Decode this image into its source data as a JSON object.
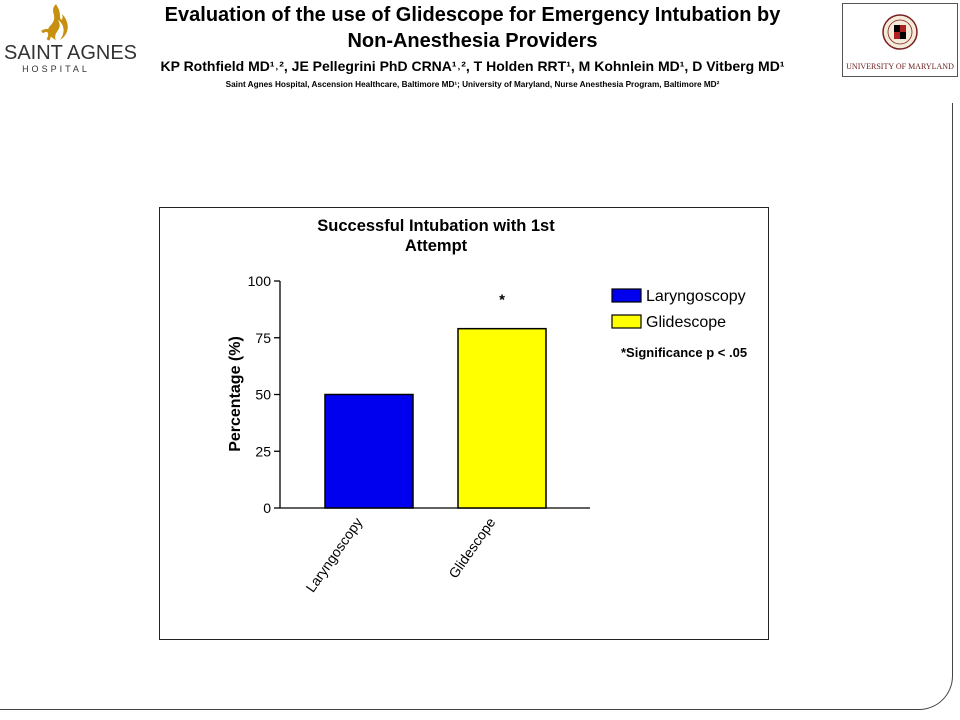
{
  "header": {
    "title_line1": "Evaluation of the use of Glidescope for Emergency Intubation by",
    "title_line2": "Non-Anesthesia Providers",
    "authors": "KP Rothfield MD¹˒², JE Pellegrini PhD CRNA¹˒², T Holden RRT¹, M Kohnlein MD¹, D Vitberg MD¹",
    "affiliations": "Saint Agnes Hospital, Ascension Healthcare, Baltimore MD¹; University of Maryland, Nurse Anesthesia Program, Baltimore MD²"
  },
  "logos": {
    "left_name": "SAINT AGNES",
    "left_sub": "HOSPITAL",
    "right_name": "UNIVERSITY OF MARYLAND",
    "left_icon": "flame-icon",
    "right_icon": "university-seal-icon"
  },
  "chart_data": {
    "type": "bar",
    "title": "Successful Intubation with 1st Attempt",
    "title_lines": [
      "Successful Intubation with 1st",
      "Attempt"
    ],
    "ylabel": "Percentage (%)",
    "xlabel": "",
    "categories": [
      "Laryngoscopy",
      "Glidescope"
    ],
    "values": [
      50,
      79
    ],
    "colors": [
      "#0000ee",
      "#ffff00"
    ],
    "ylim": [
      0,
      100
    ],
    "yticks": [
      0,
      25,
      50,
      75,
      100
    ],
    "grid": false,
    "legend_position": "right",
    "legend": [
      {
        "label": "Laryngoscopy",
        "color": "#0000ee"
      },
      {
        "label": "Glidescope",
        "color": "#ffff00"
      }
    ],
    "annotations": {
      "marker": "*",
      "marker_category": "Glidescope",
      "significance_note": "*Significance p < .05"
    }
  }
}
